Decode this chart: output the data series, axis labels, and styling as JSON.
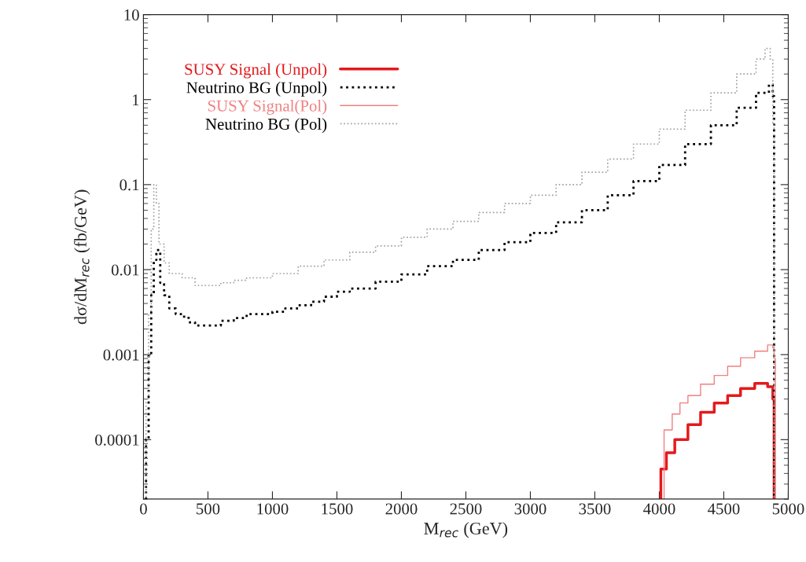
{
  "chart_data": {
    "type": "step",
    "xlabel": "M$_{rec}$ (GeV)",
    "ylabel": "dσ/dM$_{rec}$ (fb/GeV)",
    "log": "y",
    "xlim": [
      0,
      5000
    ],
    "xticks": [
      0,
      500,
      1000,
      1500,
      2000,
      2500,
      3000,
      3500,
      4000,
      4500,
      5000
    ],
    "ylim": [
      2e-05,
      10
    ],
    "yticks": [
      {
        "value": 0.0001,
        "label": "0.0001"
      },
      {
        "value": 0.001,
        "label": "0.001"
      },
      {
        "value": 0.01,
        "label": "0.01"
      },
      {
        "value": 0.1,
        "label": "0.1"
      },
      {
        "value": 1,
        "label": "1"
      },
      {
        "value": 10,
        "label": "10"
      }
    ],
    "grid": false,
    "legend": "top left",
    "series": [
      {
        "name": "SUSY Signal (Unpol)",
        "color": "#e31a1c",
        "line_style": "solid",
        "x": [
          4012,
          4055,
          4120,
          4222,
          4320,
          4426,
          4530,
          4630,
          4740,
          4840,
          4880,
          4890
        ],
        "values": [
          4.5e-05,
          7e-05,
          0.0001,
          0.00015,
          0.00021,
          0.00027,
          0.00033,
          0.0004,
          0.00046,
          0.00042,
          0.0003,
          0.0003
        ]
      },
      {
        "name": "Neutrino BG (Unpol)",
        "color": "#000000",
        "line_style": "dotted",
        "x": [
          20,
          40,
          60,
          80,
          100,
          130,
          160,
          200,
          250,
          300,
          350,
          400,
          500,
          600,
          700,
          800,
          900,
          1000,
          1100,
          1200,
          1300,
          1400,
          1500,
          1600,
          1800,
          2000,
          2200,
          2400,
          2600,
          2800,
          3000,
          3200,
          3400,
          3600,
          3800,
          4000,
          4200,
          4400,
          4600,
          4750,
          4850,
          4880,
          4890
        ],
        "values": [
          0.0001,
          0.001,
          0.005,
          0.013,
          0.017,
          0.007,
          0.005,
          0.0035,
          0.003,
          0.0028,
          0.0024,
          0.0022,
          0.0022,
          0.0025,
          0.0027,
          0.003,
          0.003,
          0.0032,
          0.0035,
          0.0038,
          0.0042,
          0.0048,
          0.0055,
          0.006,
          0.0072,
          0.0088,
          0.011,
          0.013,
          0.017,
          0.021,
          0.027,
          0.036,
          0.05,
          0.075,
          0.11,
          0.17,
          0.3,
          0.5,
          0.8,
          1.2,
          1.5,
          1.1,
          1.1
        ]
      },
      {
        "name": "SUSY Signal(Pol)",
        "color": "#f08080",
        "line_style": "solid",
        "x": [
          4037,
          4100,
          4160,
          4222,
          4320,
          4426,
          4530,
          4630,
          4740,
          4840,
          4880,
          4890,
          4900
        ],
        "values": [
          0.00013,
          0.0002,
          0.00027,
          0.00033,
          0.00045,
          0.00057,
          0.00073,
          0.00092,
          0.0011,
          0.0013,
          0.0012,
          0.0009,
          0.0009
        ]
      },
      {
        "name": "Neutrino BG (Pol)",
        "color": "#a0a0a0",
        "line_style": "dotted",
        "x": [
          20,
          40,
          60,
          80,
          100,
          120,
          160,
          200,
          300,
          400,
          500,
          600,
          700,
          800,
          1000,
          1200,
          1400,
          1600,
          1800,
          2000,
          2200,
          2400,
          2600,
          2800,
          3000,
          3200,
          3400,
          3600,
          3800,
          4000,
          4200,
          4400,
          4600,
          4750,
          4820,
          4860,
          4880,
          4890
        ],
        "values": [
          0.0003,
          0.003,
          0.03,
          0.1,
          0.06,
          0.02,
          0.012,
          0.009,
          0.008,
          0.0065,
          0.0065,
          0.007,
          0.0075,
          0.008,
          0.009,
          0.011,
          0.013,
          0.016,
          0.019,
          0.024,
          0.03,
          0.037,
          0.047,
          0.06,
          0.075,
          0.1,
          0.14,
          0.2,
          0.3,
          0.45,
          0.75,
          1.2,
          2.0,
          3.0,
          4.0,
          3.0,
          0.5,
          0.5
        ]
      }
    ]
  }
}
